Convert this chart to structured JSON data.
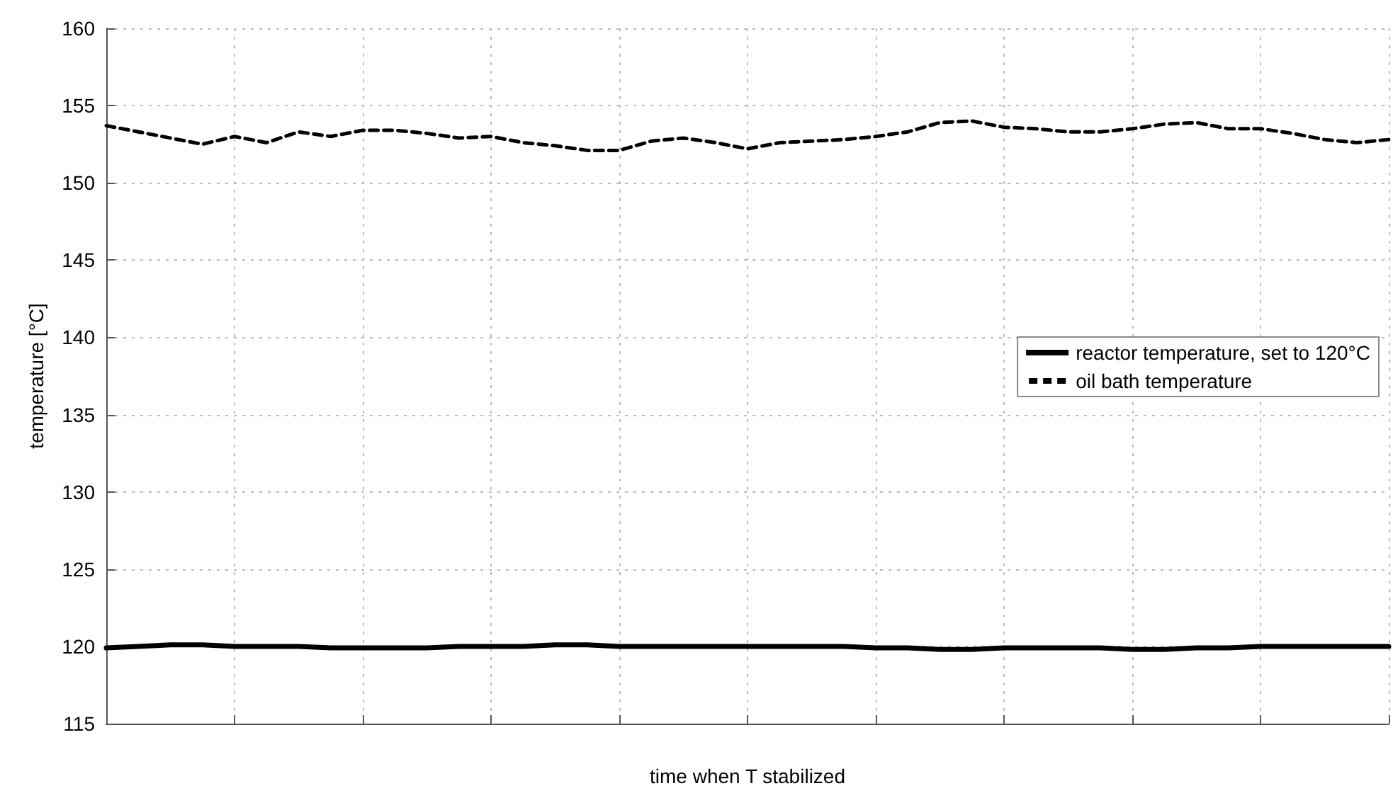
{
  "chart_data": {
    "type": "line",
    "xlabel": "time when T stabilized",
    "ylabel": "temperature [°C]",
    "categories": [
      null,
      null,
      null,
      null,
      null,
      null,
      null,
      null,
      null,
      null,
      null,
      null,
      null,
      null,
      null,
      null,
      null,
      null,
      null,
      null,
      null,
      null,
      null,
      null,
      null,
      null,
      null,
      null,
      null,
      null,
      null,
      null,
      null,
      null,
      null,
      null,
      null,
      null,
      null,
      null,
      null
    ],
    "ylim": [
      115,
      160
    ],
    "yticks": [
      115,
      120,
      125,
      130,
      135,
      140,
      145,
      150,
      155,
      160
    ],
    "grid": true,
    "legend": "right",
    "tick_labels": "y",
    "marker": "none",
    "series": [
      {
        "name": "reactor temperature, set to 120°C",
        "color": "#000000",
        "line_style": "solid",
        "values": [
          119.9,
          120.0,
          120.1,
          120.1,
          120.0,
          120.0,
          120.0,
          119.9,
          119.9,
          119.9,
          119.9,
          120.0,
          120.0,
          120.0,
          120.1,
          120.1,
          120.0,
          120.0,
          120.0,
          120.0,
          120.0,
          120.0,
          120.0,
          120.0,
          119.9,
          119.9,
          119.8,
          119.8,
          119.9,
          119.9,
          119.9,
          119.9,
          119.8,
          119.8,
          119.9,
          119.9,
          120.0,
          120.0,
          120.0,
          120.0,
          120.0
        ]
      },
      {
        "name": "oil bath temperature",
        "color": "#000000",
        "line_style": "dashed",
        "values": [
          153.7,
          153.3,
          152.9,
          152.5,
          153.0,
          152.6,
          153.3,
          153.0,
          153.4,
          153.4,
          153.2,
          152.9,
          153.0,
          152.6,
          152.4,
          152.1,
          152.1,
          152.7,
          152.9,
          152.6,
          152.2,
          152.6,
          152.7,
          152.8,
          153.0,
          153.3,
          153.9,
          154.0,
          153.6,
          153.5,
          153.3,
          153.3,
          153.5,
          153.8,
          153.9,
          153.5,
          153.5,
          153.2,
          152.8,
          152.6,
          152.8
        ]
      }
    ]
  }
}
